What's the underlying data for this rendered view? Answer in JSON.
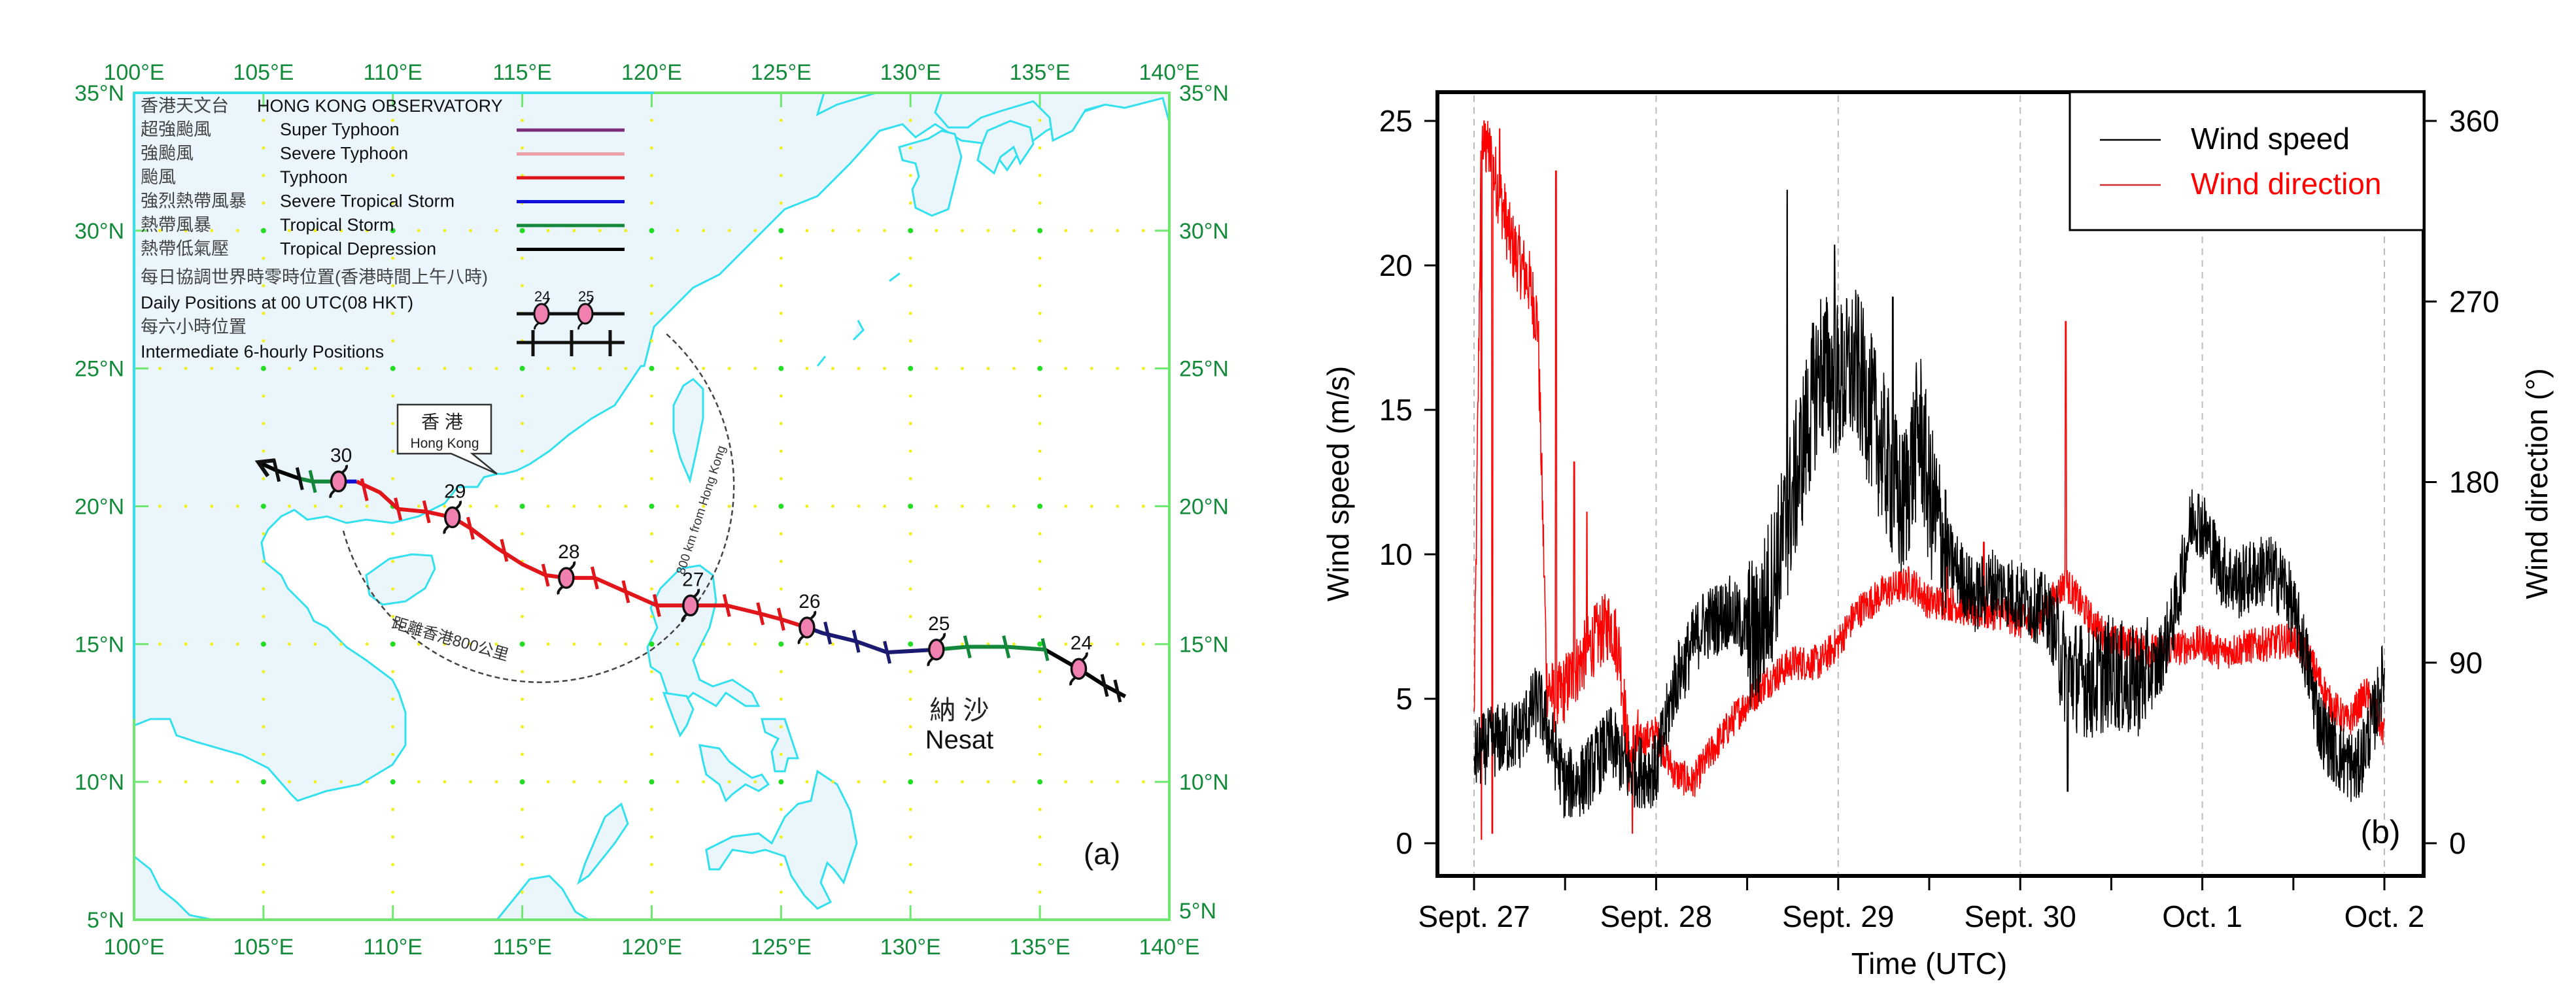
{
  "chart_data": [
    {
      "type": "map",
      "panel_label": "(a)",
      "title": "香港天文台 HONG KONG OBSERVATORY",
      "title_cn": "香港天文台",
      "title_en": "HONG KONG OBSERVATORY",
      "lon_range": [
        100,
        140
      ],
      "lat_range": [
        5,
        35
      ],
      "lon_ticks": [
        "100°E",
        "105°E",
        "110°E",
        "115°E",
        "120°E",
        "125°E",
        "130°E",
        "135°E",
        "140°E"
      ],
      "lat_ticks": [
        "5°N",
        "10°N",
        "15°N",
        "20°N",
        "25°N",
        "30°N",
        "35°N"
      ],
      "legend": [
        {
          "cn": "超強颱風",
          "en": "Super Typhoon",
          "color": "#7b2d7b"
        },
        {
          "cn": "強颱風",
          "en": "Severe Typhoon",
          "color": "#f0a0a8"
        },
        {
          "cn": "颱風",
          "en": "Typhoon",
          "color": "#e0161b"
        },
        {
          "cn": "強烈熱帶風暴",
          "en": "Severe Tropical Storm",
          "color": "#1010d8"
        },
        {
          "cn": "熱帶風暴",
          "en": "Tropical Storm",
          "color": "#13883a"
        },
        {
          "cn": "熱帶低氣壓",
          "en": "Tropical Depression",
          "color": "#000000"
        }
      ],
      "legend_daily_cn": "每日協調世界時零時位置(香港時間上午八時)",
      "legend_daily_en": "Daily Positions at 00 UTC(08 HKT)",
      "legend_daily_samples": [
        "24",
        "25"
      ],
      "legend_6h_cn": "每六小時位置",
      "legend_6h_en": "Intermediate 6-hourly Positions",
      "hong_kong_label_cn": "香港",
      "hong_kong_label_en": "Hong Kong",
      "circle_label_en": "800 km from Hong Kong",
      "circle_label_cn": "距離香港800公里",
      "storm_name_cn": "納 沙",
      "storm_name_en": "Nesat",
      "daily_positions": [
        {
          "day": "24",
          "lon": 136.5,
          "lat": 14.1
        },
        {
          "day": "25",
          "lon": 131.0,
          "lat": 14.8
        },
        {
          "day": "26",
          "lon": 126.0,
          "lat": 15.6
        },
        {
          "day": "27",
          "lon": 121.5,
          "lat": 16.4
        },
        {
          "day": "28",
          "lon": 116.7,
          "lat": 17.4
        },
        {
          "day": "29",
          "lon": 112.3,
          "lat": 19.6
        },
        {
          "day": "30",
          "lon": 107.9,
          "lat": 20.9
        }
      ],
      "track_segments": [
        {
          "intensity": "Tropical Depression",
          "color": "#000000",
          "points": [
            [
              138.3,
              13.1
            ],
            [
              137.5,
              13.5
            ],
            [
              136.5,
              14.1
            ],
            [
              135.2,
              14.8
            ]
          ]
        },
        {
          "intensity": "Tropical Storm",
          "color": "#13883a",
          "points": [
            [
              135.2,
              14.8
            ],
            [
              133.7,
              14.9
            ],
            [
              132.2,
              14.9
            ],
            [
              131.0,
              14.8
            ]
          ]
        },
        {
          "intensity": "Severe Tropical Storm",
          "color": "#1a1a70",
          "points": [
            [
              131.0,
              14.8
            ],
            [
              129.1,
              14.7
            ],
            [
              127.9,
              15.1
            ],
            [
              126.6,
              15.4
            ],
            [
              126.0,
              15.6
            ]
          ]
        },
        {
          "intensity": "Typhoon",
          "color": "#e0161b",
          "points": [
            [
              126.0,
              15.6
            ],
            [
              125.0,
              15.9
            ],
            [
              124.2,
              16.1
            ],
            [
              122.9,
              16.4
            ],
            [
              121.5,
              16.4
            ],
            [
              120.2,
              16.4
            ],
            [
              119.0,
              16.9
            ],
            [
              117.8,
              17.4
            ],
            [
              116.7,
              17.4
            ],
            [
              115.9,
              17.5
            ],
            [
              115.0,
              17.9
            ],
            [
              114.0,
              18.5
            ],
            [
              113.0,
              19.2
            ],
            [
              112.3,
              19.6
            ],
            [
              111.3,
              19.8
            ],
            [
              110.2,
              19.9
            ],
            [
              109.5,
              20.5
            ],
            [
              108.6,
              20.9
            ]
          ]
        },
        {
          "intensity": "Severe Tropical Storm",
          "color": "#1010d8",
          "points": [
            [
              108.6,
              20.9
            ],
            [
              107.9,
              20.9
            ]
          ]
        },
        {
          "intensity": "Tropical Storm",
          "color": "#13883a",
          "points": [
            [
              107.9,
              20.9
            ],
            [
              106.9,
              20.9
            ],
            [
              106.4,
              21.0
            ]
          ]
        },
        {
          "intensity": "Tropical Depression",
          "color": "#000000",
          "points": [
            [
              106.4,
              21.0
            ],
            [
              105.5,
              21.3
            ],
            [
              104.8,
              21.6
            ]
          ]
        }
      ],
      "six_hourly_ticks": [
        [
          137.5,
          13.5
        ],
        [
          138.0,
          13.3
        ],
        [
          135.2,
          14.8
        ],
        [
          133.7,
          14.9
        ],
        [
          132.2,
          14.9
        ],
        [
          129.1,
          14.7
        ],
        [
          127.9,
          15.1
        ],
        [
          126.8,
          15.4
        ],
        [
          125.0,
          15.9
        ],
        [
          124.2,
          16.1
        ],
        [
          122.9,
          16.4
        ],
        [
          120.2,
          16.4
        ],
        [
          119.0,
          16.9
        ],
        [
          117.8,
          17.4
        ],
        [
          115.9,
          17.5
        ],
        [
          114.3,
          18.4
        ],
        [
          113.0,
          19.2
        ],
        [
          111.3,
          19.8
        ],
        [
          110.2,
          19.9
        ],
        [
          108.9,
          20.6
        ],
        [
          106.9,
          20.9
        ],
        [
          106.4,
          21.0
        ],
        [
          105.5,
          21.3
        ]
      ]
    },
    {
      "type": "line",
      "panel_label": "(b)",
      "xlabel": "Time (UTC)",
      "ylabel": "Wind speed (m/s)",
      "y2label": "Wind direction (°)",
      "x_tick_labels": [
        "Sept. 27",
        "Sept. 28",
        "Sept. 29",
        "Sept. 30",
        "Oct. 1",
        "Oct. 2"
      ],
      "x_range_days": [
        0,
        5
      ],
      "ylim": [
        0,
        25
      ],
      "y_ticks": [
        "0",
        "5",
        "10",
        "15",
        "20",
        "25"
      ],
      "y2lim": [
        0,
        360
      ],
      "y2_ticks": [
        "0",
        "90",
        "180",
        "270",
        "360"
      ],
      "legend": [
        {
          "name": "Wind speed",
          "color": "#000000"
        },
        {
          "name": "Wind direction",
          "color": "#ff0000"
        }
      ],
      "legend_position": "top-right",
      "grid": "vertical dashed at day boundaries",
      "series": [
        {
          "name": "Wind speed",
          "axis": "left",
          "x_days": [
            0,
            0.1,
            0.25,
            0.35,
            0.45,
            0.5,
            0.6,
            0.75,
            0.85,
            1.0,
            1.1,
            1.25,
            1.4,
            1.55,
            1.7,
            1.8,
            1.9,
            2.0,
            2.1,
            2.25,
            2.35,
            2.45,
            2.5,
            2.6,
            2.75,
            2.85,
            3.0,
            3.15,
            3.25,
            3.4,
            3.5,
            3.6,
            3.75,
            3.85,
            3.95,
            4.0,
            4.1,
            4.2,
            4.35,
            4.45,
            4.55,
            4.65,
            4.75,
            4.85,
            4.95,
            5.0
          ],
          "values": [
            3.0,
            3.5,
            3.8,
            5.0,
            3.0,
            2.0,
            2.2,
            3.5,
            2.5,
            2.5,
            5.5,
            7.5,
            8.0,
            7.0,
            10.5,
            13.5,
            16.5,
            16.0,
            16.5,
            13.5,
            11.5,
            14.5,
            12.0,
            10.0,
            8.5,
            9.0,
            8.5,
            8.0,
            6.0,
            5.5,
            6.0,
            5.5,
            6.0,
            8.0,
            11.5,
            11.0,
            9.5,
            9.0,
            9.5,
            9.0,
            7.0,
            4.0,
            3.0,
            2.5,
            4.5,
            6.0
          ]
        },
        {
          "name": "Wind direction",
          "axis": "right",
          "x_days": [
            0,
            0.04,
            0.08,
            0.15,
            0.2,
            0.25,
            0.3,
            0.35,
            0.4,
            0.45,
            0.55,
            0.65,
            0.75,
            0.8,
            0.85,
            0.9,
            1.0,
            1.1,
            1.2,
            1.3,
            1.45,
            1.6,
            1.75,
            1.9,
            2.0,
            2.1,
            2.25,
            2.4,
            2.5,
            2.6,
            2.75,
            2.9,
            3.0,
            3.1,
            3.25,
            3.4,
            3.5,
            3.6,
            3.75,
            3.9,
            4.0,
            4.1,
            4.25,
            4.4,
            4.5,
            4.6,
            4.7,
            4.8,
            4.9,
            5.0
          ],
          "values": [
            60,
            350,
            345,
            320,
            300,
            290,
            280,
            260,
            80,
            70,
            85,
            100,
            110,
            95,
            40,
            50,
            55,
            35,
            30,
            45,
            65,
            80,
            90,
            90,
            100,
            115,
            125,
            130,
            120,
            120,
            115,
            115,
            110,
            112,
            130,
            110,
            100,
            100,
            95,
            98,
            100,
            95,
            98,
            100,
            102,
            90,
            70,
            60,
            75,
            55
          ]
        }
      ],
      "notable_spikes": [
        {
          "series": "Wind direction",
          "x_days": 0.45,
          "value": 335
        },
        {
          "series": "Wind direction",
          "x_days": 3.25,
          "value": 260
        },
        {
          "series": "Wind speed",
          "x_days": 1.72,
          "value": 22.6
        }
      ]
    }
  ]
}
